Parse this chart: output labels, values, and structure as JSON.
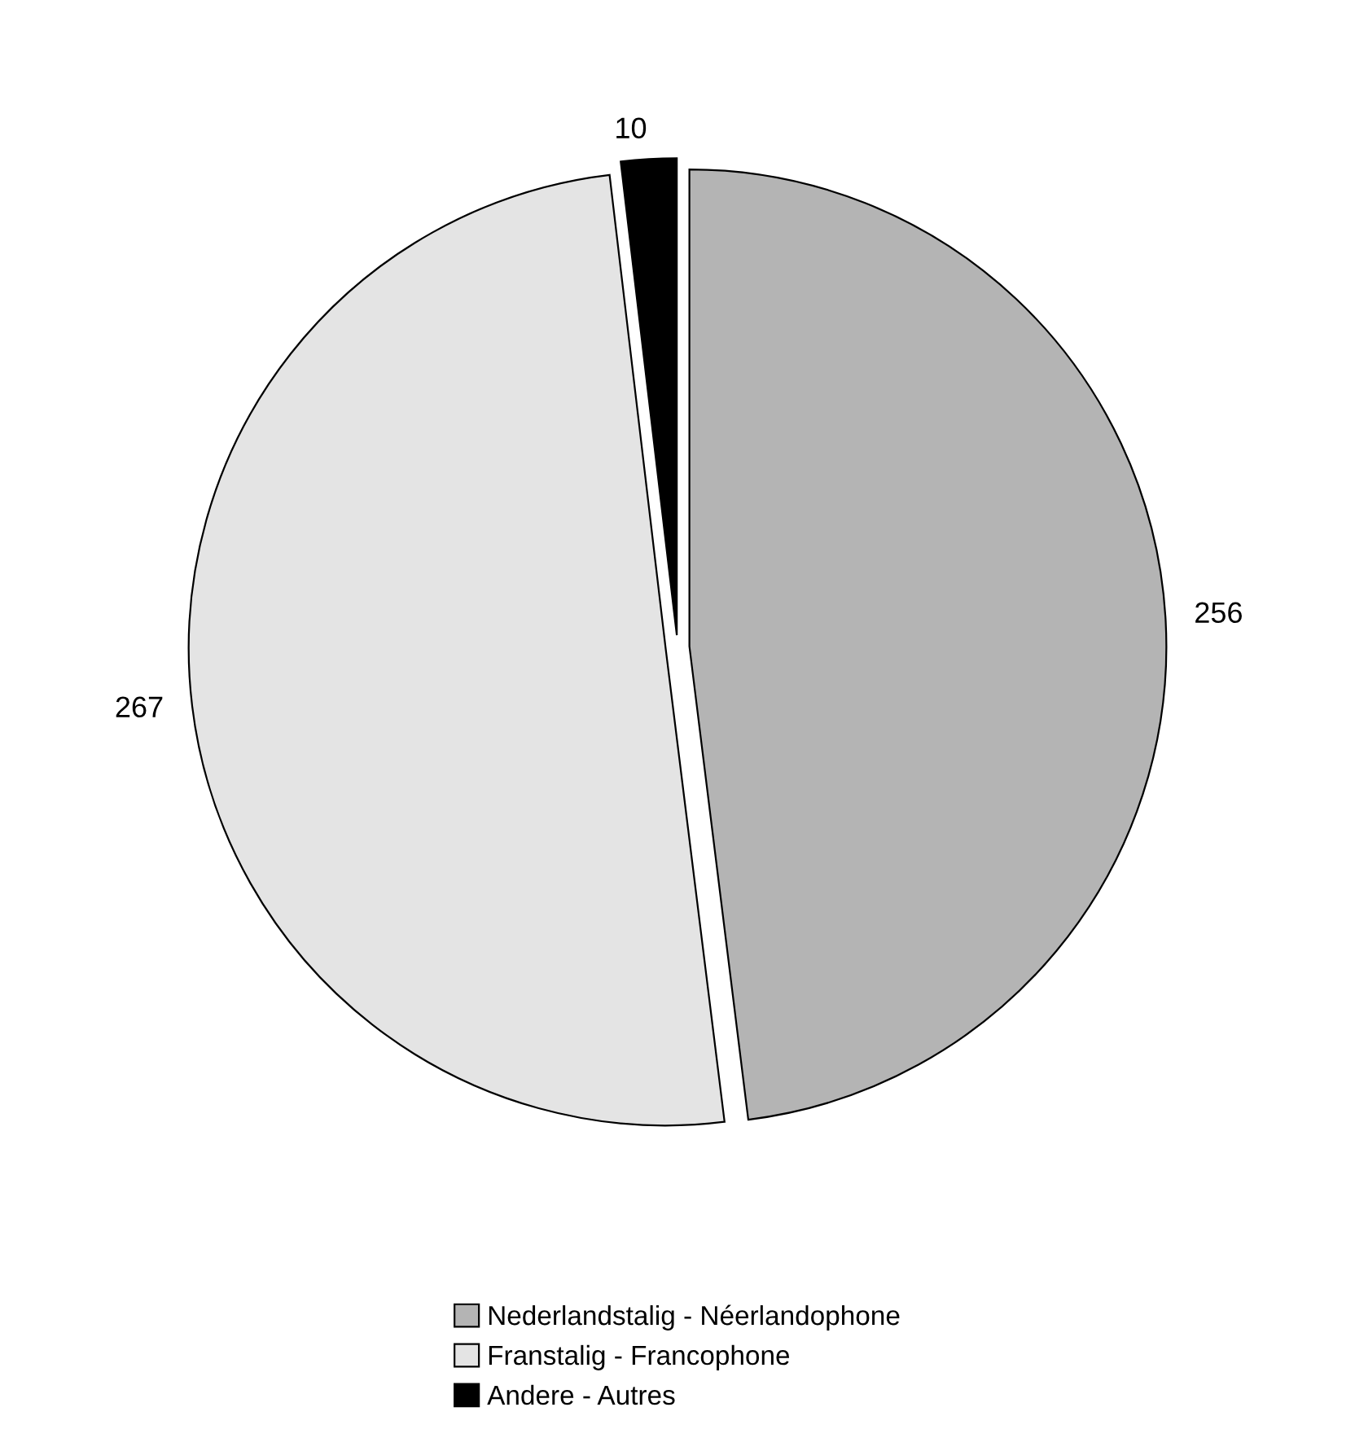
{
  "chart_data": {
    "type": "pie",
    "categories": [
      "Nederlandstalig - Néerlandophone",
      "Franstalig - Francophone",
      "Andere - Autres"
    ],
    "values": [
      256,
      267,
      10
    ],
    "colors": [
      "#b4b4b4",
      "#e4e4e4",
      "#000000"
    ],
    "data_labels": true,
    "legend": "bottom"
  }
}
